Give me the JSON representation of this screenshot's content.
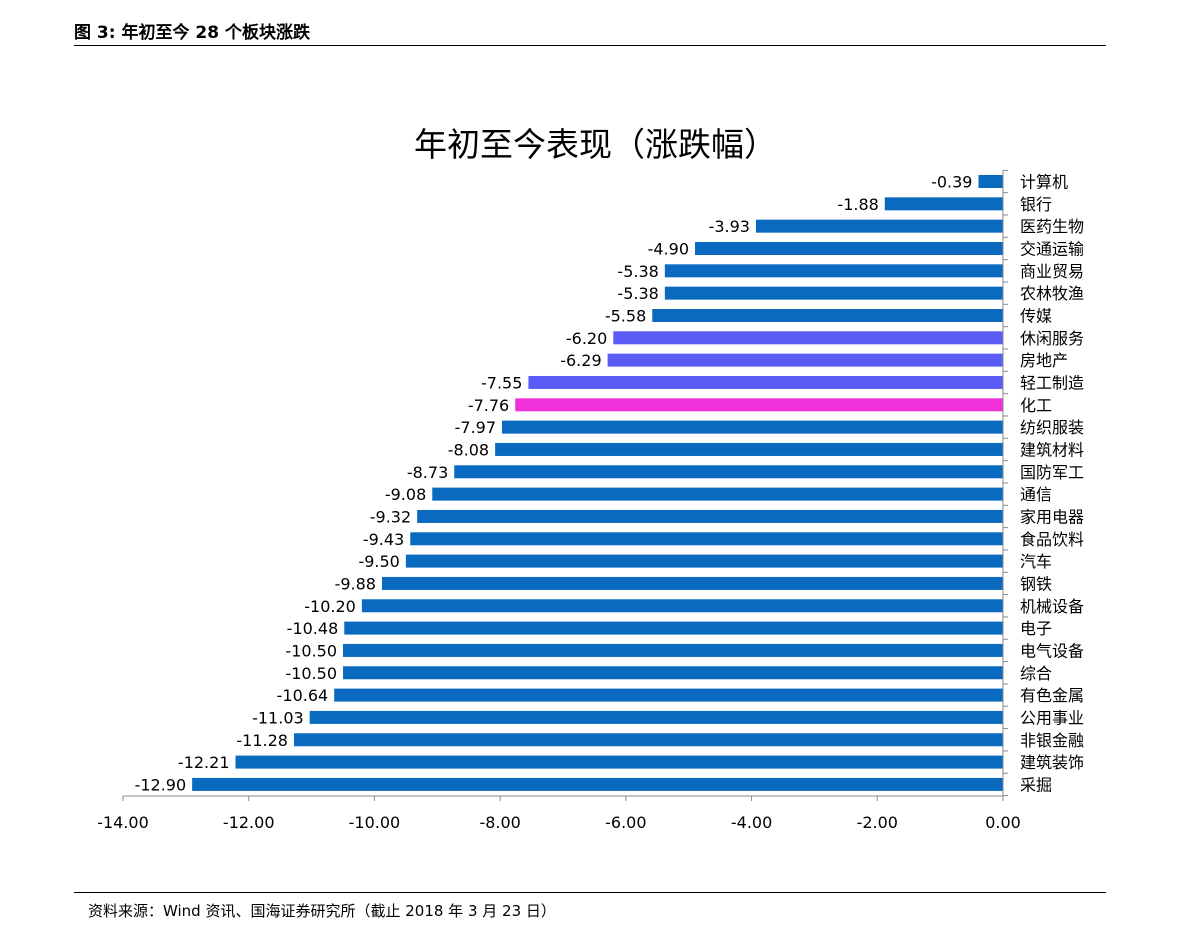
{
  "figure_header": "图 3:  年初至今 28 个板块涨跌",
  "source_note": "资料来源：Wind 资讯、国海证券研究所（截止 2018 年 3 月 23 日）",
  "colors": {
    "default": "#0A6ABF",
    "highlight_blue": "#5B5BF5",
    "highlight_pink": "#F030D8"
  },
  "chart_data": {
    "type": "bar",
    "orientation": "horizontal",
    "title": "年初至今表现（涨跌幅）",
    "xlabel": "",
    "ylabel": "",
    "xlim": [
      -14,
      0
    ],
    "x_ticks": [
      -14,
      -12,
      -10,
      -8,
      -6,
      -4,
      -2,
      0
    ],
    "tick_labels": [
      "-14.00",
      "-12.00",
      "-10.00",
      "-8.00",
      "-6.00",
      "-4.00",
      "-2.00",
      "0.00"
    ],
    "grid": false,
    "legend": "none",
    "categories": [
      "计算机",
      "银行",
      "医药生物",
      "交通运输",
      "商业贸易",
      "农林牧渔",
      "传媒",
      "休闲服务",
      "房地产",
      "轻工制造",
      "化工",
      "纺织服装",
      "建筑材料",
      "国防军工",
      "通信",
      "家用电器",
      "食品饮料",
      "汽车",
      "钢铁",
      "机械设备",
      "电子",
      "电气设备",
      "综合",
      "有色金属",
      "公用事业",
      "非银金融",
      "建筑装饰",
      "采掘"
    ],
    "values": [
      -0.39,
      -1.88,
      -3.93,
      -4.9,
      -5.38,
      -5.38,
      -5.58,
      -6.2,
      -6.29,
      -7.55,
      -7.76,
      -7.97,
      -8.08,
      -8.73,
      -9.08,
      -9.32,
      -9.43,
      -9.5,
      -9.88,
      -10.2,
      -10.48,
      -10.5,
      -10.5,
      -10.64,
      -11.03,
      -11.28,
      -12.21,
      -12.9
    ],
    "value_labels": [
      "-0.39",
      "-1.88",
      "-3.93",
      "-4.90",
      "-5.38",
      "-5.38",
      "-5.58",
      "-6.20",
      "-6.29",
      "-7.55",
      "-7.76",
      "-7.97",
      "-8.08",
      "-8.73",
      "-9.08",
      "-9.32",
      "-9.43",
      "-9.50",
      "-9.88",
      "-10.20",
      "-10.48",
      "-10.50",
      "-10.50",
      "-10.64",
      "-11.03",
      "-11.28",
      "-12.21",
      "-12.90"
    ],
    "bar_color_keys": [
      "default",
      "default",
      "default",
      "default",
      "default",
      "default",
      "default",
      "highlight_blue",
      "highlight_blue",
      "highlight_blue",
      "highlight_pink",
      "default",
      "default",
      "default",
      "default",
      "default",
      "default",
      "default",
      "default",
      "default",
      "default",
      "default",
      "default",
      "default",
      "default",
      "default",
      "default",
      "default"
    ]
  }
}
